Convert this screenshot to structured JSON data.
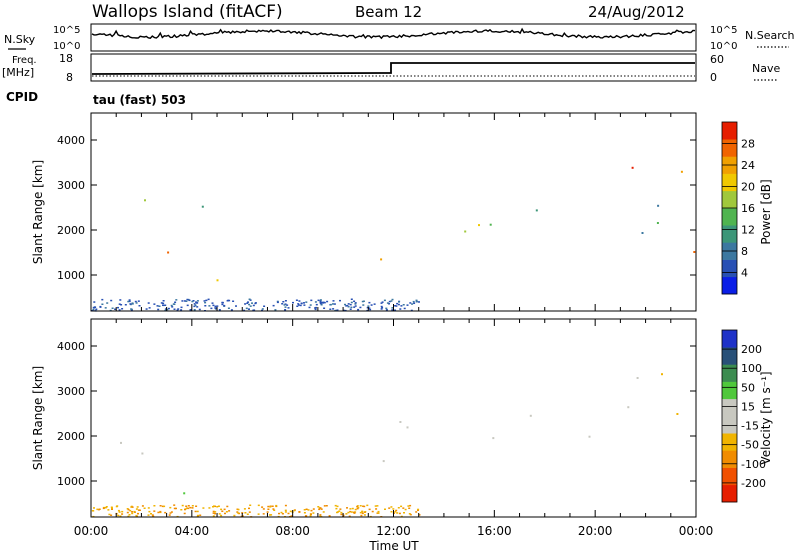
{
  "header": {
    "site": "Wallops Island (fitACF)",
    "beam": "Beam 12",
    "date": "24/Aug/2012"
  },
  "aux_panels": {
    "nsky": {
      "label": "N.Sky",
      "tick_top": "10^5",
      "tick_bottom": "10^0"
    },
    "nsearch": {
      "label": "N.Search",
      "tick_top": "10^5",
      "tick_bottom": "10^0"
    },
    "freq": {
      "label_line1": "Freq.",
      "label_line2": "[MHz]",
      "tick_top": "18",
      "tick_bottom": "8"
    },
    "nave": {
      "label": "Nave",
      "tick_top": "60",
      "tick_bottom": "0"
    },
    "cpid": {
      "label": "CPID",
      "value": "tau (fast) 503"
    }
  },
  "colors": {
    "power": [
      "#0a1ee6",
      "#2850b4",
      "#3c78a0",
      "#3c9678",
      "#50b450",
      "#a0c83c",
      "#f0c800",
      "#f0a000",
      "#f06400",
      "#e61e00"
    ],
    "velocity": [
      "#e61e00",
      "#f05000",
      "#f08c00",
      "#f0b400",
      "#c8c8c0",
      "#c8c8c0",
      "#50c83c",
      "#3c8c50",
      "#285078",
      "#1e32c8"
    ]
  },
  "colorbars": {
    "power": {
      "label": "Power [dB]",
      "ticks": [
        "4",
        "8",
        "12",
        "16",
        "20",
        "24",
        "28"
      ]
    },
    "velocity": {
      "label": "Velocity [m s⁻¹]",
      "ticks": [
        "-200",
        "-100",
        "-50",
        "-15",
        "15",
        "50",
        "100",
        "200"
      ]
    }
  },
  "chart_data": [
    {
      "type": "heatmap",
      "name": "power",
      "xlabel": "",
      "ylabel": "Slant Range [km]",
      "xlim": [
        0,
        24
      ],
      "ylim": [
        200,
        4600
      ],
      "yticks": [
        "1000",
        "2000",
        "3000",
        "4000"
      ],
      "features": [
        {
          "t": [
            0.2,
            4.5
          ],
          "r": [
            1400,
            1800
          ],
          "level": "high"
        },
        {
          "t": [
            0.2,
            5.0
          ],
          "r": [
            700,
            1000
          ],
          "level": "mixed"
        },
        {
          "t": [
            3.0,
            5.0
          ],
          "r": [
            800,
            950
          ],
          "level": "high"
        },
        {
          "t": [
            1.5,
            5.0
          ],
          "r": [
            1800,
            2800
          ],
          "level": "mid"
        },
        {
          "t": [
            6.5,
            7.2
          ],
          "r": [
            2400,
            3200
          ],
          "level": "mid"
        },
        {
          "t": [
            10.2,
            11.8
          ],
          "r": [
            1100,
            2500
          ],
          "level": "high"
        },
        {
          "t": [
            12.0,
            24.0
          ],
          "r": [
            1800,
            2700
          ],
          "level": "mid"
        },
        {
          "t": [
            20.0,
            24.0
          ],
          "r": [
            1300,
            1800
          ],
          "level": "high"
        },
        {
          "t": [
            20.7,
            24.0
          ],
          "r": [
            3100,
            3800
          ],
          "level": "high"
        }
      ]
    },
    {
      "type": "heatmap",
      "name": "velocity",
      "xlabel": "Time UT",
      "ylabel": "Slant Range [km]",
      "xlim": [
        0,
        24
      ],
      "ylim": [
        200,
        4600
      ],
      "yticks": [
        "1000",
        "2000",
        "3000",
        "4000"
      ],
      "xticks": [
        "00:00",
        "04:00",
        "08:00",
        "12:00",
        "16:00",
        "20:00",
        "00:00"
      ],
      "features": [
        {
          "t": [
            0.2,
            4.8
          ],
          "r": [
            1400,
            2200
          ],
          "level": "near-zero"
        },
        {
          "t": [
            1.5,
            4.8
          ],
          "r": [
            700,
            950
          ],
          "level": "positive"
        },
        {
          "t": [
            10.2,
            11.8
          ],
          "r": [
            1200,
            2500
          ],
          "level": "near-zero"
        },
        {
          "t": [
            12.0,
            24.0
          ],
          "r": [
            1800,
            2700
          ],
          "level": "near-zero"
        },
        {
          "t": [
            20.7,
            24.0
          ],
          "r": [
            3100,
            3800
          ],
          "level": "near-zero"
        }
      ]
    }
  ]
}
